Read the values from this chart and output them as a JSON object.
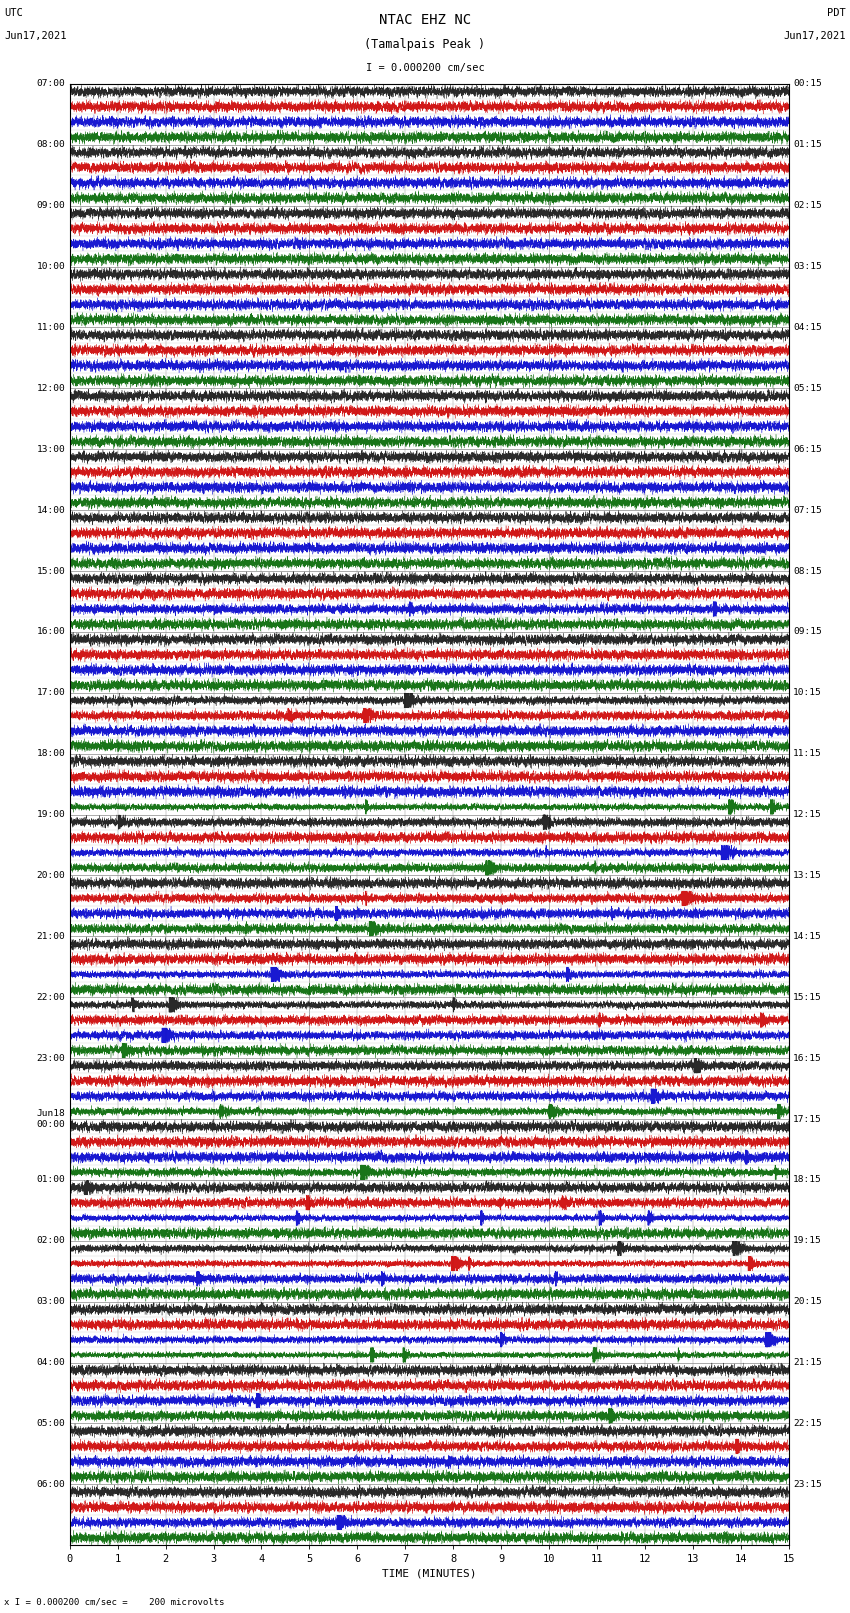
{
  "title_line1": "NTAC EHZ NC",
  "title_line2": "(Tamalpais Peak )",
  "scale_label": "I = 0.000200 cm/sec",
  "left_header_line1": "UTC",
  "left_header_line2": "Jun17,2021",
  "right_header_line1": "PDT",
  "right_header_line2": "Jun17,2021",
  "bottom_label": "TIME (MINUTES)",
  "bottom_note": "x I = 0.000200 cm/sec =    200 microvolts",
  "utc_times": [
    "07:00",
    "08:00",
    "09:00",
    "10:00",
    "11:00",
    "12:00",
    "13:00",
    "14:00",
    "15:00",
    "16:00",
    "17:00",
    "18:00",
    "19:00",
    "20:00",
    "21:00",
    "22:00",
    "23:00",
    "Jun18\n00:00",
    "01:00",
    "02:00",
    "03:00",
    "04:00",
    "05:00",
    "06:00"
  ],
  "pdt_times": [
    "00:15",
    "01:15",
    "02:15",
    "03:15",
    "04:15",
    "05:15",
    "06:15",
    "07:15",
    "08:15",
    "09:15",
    "10:15",
    "11:15",
    "12:15",
    "13:15",
    "14:15",
    "15:15",
    "16:15",
    "17:15",
    "18:15",
    "19:15",
    "20:15",
    "21:15",
    "22:15",
    "23:15"
  ],
  "trace_colors": [
    "#111111",
    "#cc0000",
    "#0000cc",
    "#006600"
  ],
  "n_rows": 24,
  "n_traces_per_row": 4,
  "minutes": 15,
  "fig_width": 8.5,
  "fig_height": 16.13
}
